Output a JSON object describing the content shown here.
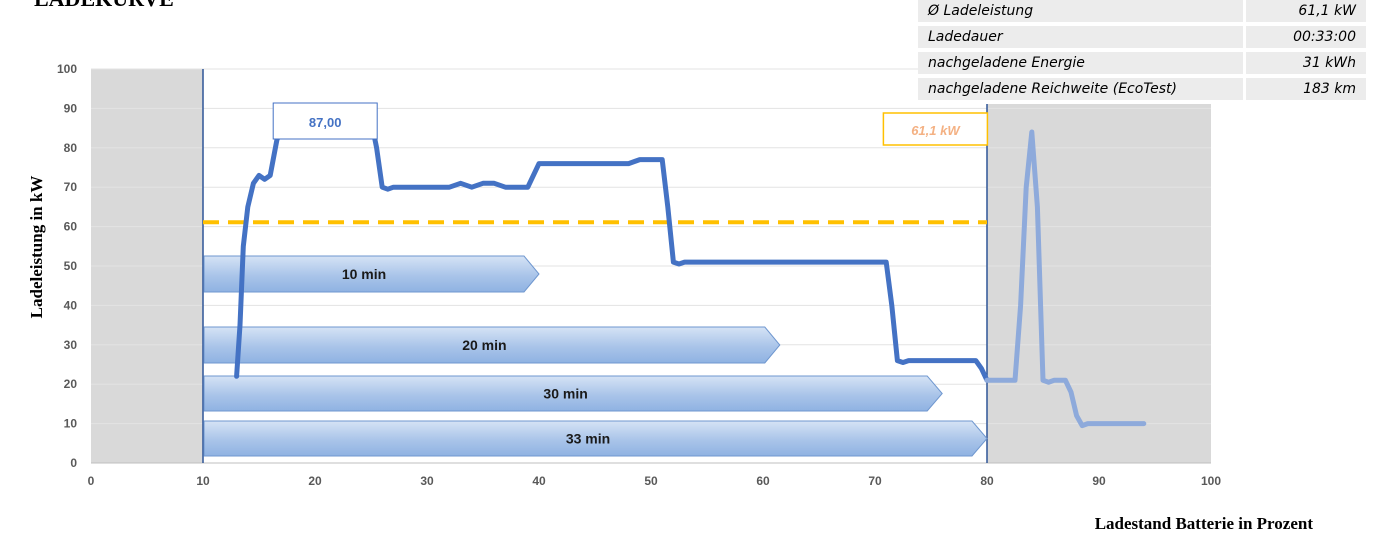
{
  "title_fragment": "LADEKURVE",
  "stats": [
    {
      "label": "Ø Ladeleistung",
      "value": "61,1 kW"
    },
    {
      "label": "Ladedauer",
      "value": "00:33:00"
    },
    {
      "label": "nachgeladene Energie",
      "value": "31 kWh"
    },
    {
      "label": "nachgeladene Reichweite (EcoTest)",
      "value": "183 km"
    }
  ],
  "chart_data": {
    "type": "line",
    "xlabel": "Ladestand Batterie in Prozent",
    "ylabel": "Ladeleistung in kW",
    "xlim": [
      0,
      100
    ],
    "ylim": [
      0,
      100
    ],
    "xticks": [
      0,
      10,
      20,
      30,
      40,
      50,
      60,
      70,
      80,
      90,
      100
    ],
    "yticks": [
      0,
      10,
      20,
      30,
      40,
      50,
      60,
      70,
      80,
      90,
      100
    ],
    "grid": "horizontal",
    "shaded_regions": [
      [
        0,
        10
      ],
      [
        80,
        100
      ]
    ],
    "charging_window": [
      10,
      80
    ],
    "series": [
      {
        "color": "#4472c4",
        "x": [
          13.0,
          13.3,
          13.6,
          14.0,
          14.5,
          15.0,
          15.5,
          16.0,
          16.6,
          17.2,
          18.0,
          19.0,
          20.0,
          22.0,
          24.0,
          25.0,
          25.5,
          26.0,
          26.5,
          27.0,
          28.0,
          30.0,
          32.0,
          33.0,
          34.0,
          35.0,
          36.0,
          37.0,
          38.0,
          39.0,
          40.0,
          41.0,
          42.0,
          44.0,
          46.0,
          48.0,
          49.0,
          50.0,
          51.0,
          51.5,
          52.0,
          52.5,
          53.0,
          55.0,
          60.0,
          65.0,
          70.0,
          71.0,
          71.5,
          72.0,
          72.5,
          73.0,
          75.0,
          78.0,
          79.0,
          79.5,
          80.0
        ],
        "y": [
          22,
          35,
          55,
          65,
          71,
          73,
          72,
          73,
          82,
          86,
          87,
          87,
          87,
          87,
          87,
          87,
          80,
          70,
          69.5,
          70,
          70,
          70,
          70,
          71,
          70,
          71,
          71,
          70,
          70,
          70,
          76,
          76,
          76,
          76,
          76,
          76,
          77,
          77,
          77,
          65,
          51,
          50.5,
          51,
          51,
          51,
          51,
          51,
          51,
          40,
          26,
          25.5,
          26,
          26,
          26,
          26,
          24,
          21
        ]
      },
      {
        "color": "#8eaadb",
        "x": [
          80.0,
          81.0,
          82.0,
          82.5,
          83.0,
          83.5,
          84.0,
          84.5,
          85.0,
          85.5,
          86.0,
          87.0,
          87.5,
          88.0,
          88.5,
          89.0,
          90.0,
          92.0,
          94.0
        ],
        "y": [
          21,
          21,
          21,
          21,
          40,
          70,
          84,
          65,
          21,
          20.5,
          21,
          21,
          18,
          12,
          9.5,
          10,
          10,
          10,
          10
        ]
      }
    ],
    "average_line": {
      "value": 61.1,
      "x_range": [
        10,
        80
      ],
      "color": "#ffc000",
      "style": "dashed"
    },
    "annotations": [
      {
        "text": "87,00",
        "x": 21,
        "y": 87
      },
      {
        "text": "61,1 kW",
        "x": 72,
        "y": 61.1
      }
    ],
    "time_markers": [
      {
        "label": "10 min",
        "from": 10,
        "to": 40
      },
      {
        "label": "20 min",
        "from": 10,
        "to": 61.5
      },
      {
        "label": "30 min",
        "from": 10,
        "to": 76
      },
      {
        "label": "33 min",
        "from": 10,
        "to": 80
      }
    ]
  }
}
